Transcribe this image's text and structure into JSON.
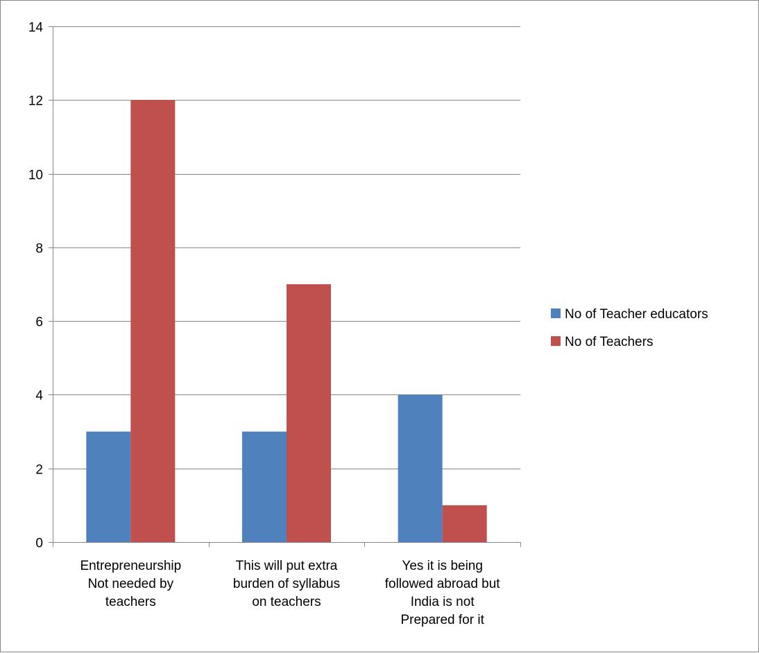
{
  "chart_data": {
    "type": "bar",
    "categories": [
      [
        "Entrepreneurship",
        "Not needed by",
        "teachers"
      ],
      [
        "This will put extra",
        "burden of syllabus",
        "on teachers"
      ],
      [
        "Yes it is being",
        "followed abroad but",
        "India is not",
        "Prepared for it"
      ]
    ],
    "series": [
      {
        "name": "No of Teacher educators",
        "color": "#4F81BD",
        "values": [
          3,
          3,
          4
        ]
      },
      {
        "name": "No of Teachers",
        "color": "#C0504D",
        "values": [
          12,
          7,
          1
        ]
      }
    ],
    "y_ticks": [
      0,
      2,
      4,
      6,
      8,
      10,
      12,
      14
    ],
    "ylim": [
      0,
      14
    ],
    "grid": true,
    "legend_position": "right"
  }
}
